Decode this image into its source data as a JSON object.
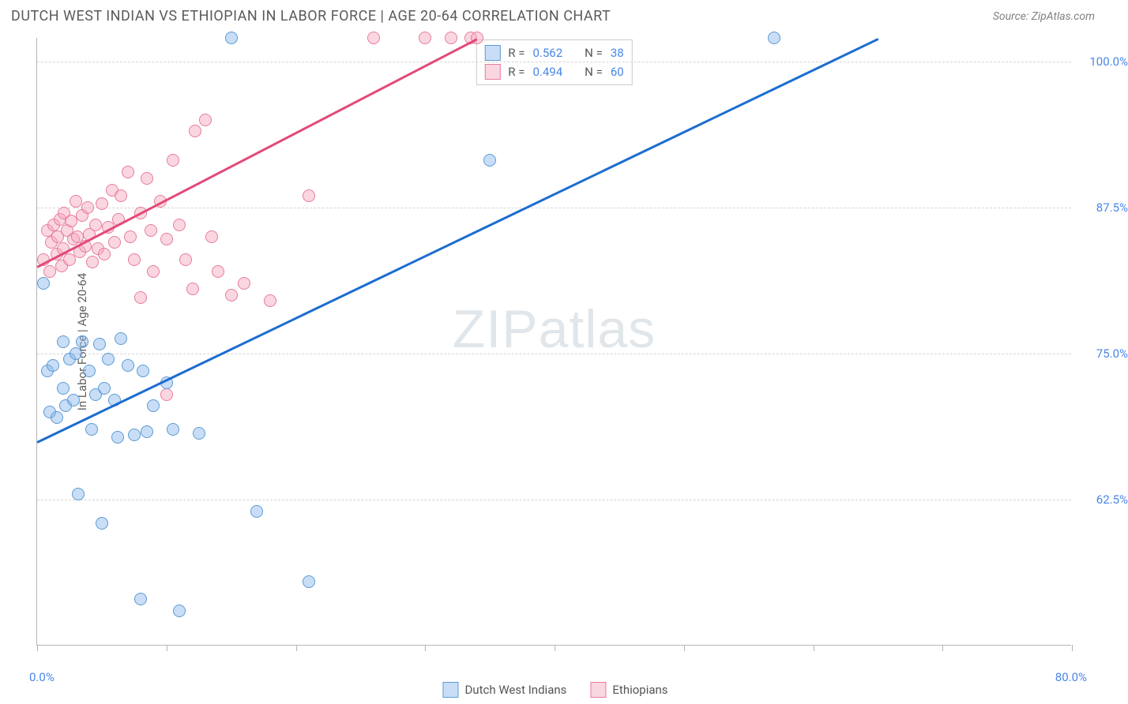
{
  "header": {
    "title": "DUTCH WEST INDIAN VS ETHIOPIAN IN LABOR FORCE | AGE 20-64 CORRELATION CHART",
    "source": "Source: ZipAtlas.com"
  },
  "chart": {
    "type": "scatter",
    "y_axis_title": "In Labor Force | Age 20-64",
    "watermark": "ZIPatlas",
    "xlim": [
      0,
      80
    ],
    "ylim": [
      50,
      102
    ],
    "x_labels": {
      "min": "0.0%",
      "max": "80.0%"
    },
    "y_ticks": [
      {
        "value": 62.5,
        "label": "62.5%"
      },
      {
        "value": 75.0,
        "label": "75.0%"
      },
      {
        "value": 87.5,
        "label": "87.5%"
      },
      {
        "value": 100.0,
        "label": "100.0%"
      }
    ],
    "x_tick_positions": [
      0,
      10,
      20,
      30,
      40,
      50,
      60,
      70,
      80
    ],
    "background_color": "#ffffff",
    "grid_color": "#d5d5d5",
    "series": [
      {
        "name": "Dutch West Indians",
        "marker_fill": "rgba(135,182,235,0.45)",
        "marker_stroke": "#5b9bd5",
        "marker_size": 16,
        "trend": {
          "x1": 0,
          "y1": 67.5,
          "x2": 65,
          "y2": 102,
          "color": "#1c6dd0",
          "width": 2.5
        },
        "R": "0.562",
        "N": "38",
        "points": [
          [
            0.5,
            81
          ],
          [
            0.8,
            73.5
          ],
          [
            1,
            70
          ],
          [
            1.2,
            74
          ],
          [
            1.5,
            69.5
          ],
          [
            2,
            76
          ],
          [
            2,
            72
          ],
          [
            2.2,
            70.5
          ],
          [
            2.5,
            74.5
          ],
          [
            2.8,
            71
          ],
          [
            3,
            75
          ],
          [
            3.2,
            63
          ],
          [
            3.5,
            76
          ],
          [
            4,
            73.5
          ],
          [
            4.2,
            68.5
          ],
          [
            4.5,
            71.5
          ],
          [
            4.8,
            75.8
          ],
          [
            5,
            60.5
          ],
          [
            5.2,
            72
          ],
          [
            5.5,
            74.5
          ],
          [
            6,
            71
          ],
          [
            6.2,
            67.8
          ],
          [
            6.5,
            76.3
          ],
          [
            7,
            74
          ],
          [
            7.5,
            68
          ],
          [
            8,
            54
          ],
          [
            8.2,
            73.5
          ],
          [
            8.5,
            68.3
          ],
          [
            9,
            70.5
          ],
          [
            10,
            72.5
          ],
          [
            10.5,
            68.5
          ],
          [
            11,
            53
          ],
          [
            12.5,
            68.2
          ],
          [
            15,
            102
          ],
          [
            17,
            61.5
          ],
          [
            21,
            55.5
          ],
          [
            35,
            91.5
          ],
          [
            57,
            102
          ]
        ]
      },
      {
        "name": "Ethiopians",
        "marker_fill": "rgba(244,166,187,0.45)",
        "marker_stroke": "#e87b9c",
        "marker_size": 16,
        "trend": {
          "x1": 0,
          "y1": 82.5,
          "x2": 34,
          "y2": 102,
          "color": "#e24a78",
          "width": 2.5
        },
        "R": "0.494",
        "N": "60",
        "points": [
          [
            0.5,
            83
          ],
          [
            0.8,
            85.5
          ],
          [
            1,
            82
          ],
          [
            1.1,
            84.5
          ],
          [
            1.3,
            86
          ],
          [
            1.5,
            83.5
          ],
          [
            1.6,
            85
          ],
          [
            1.8,
            86.5
          ],
          [
            1.9,
            82.5
          ],
          [
            2,
            84
          ],
          [
            2.1,
            87
          ],
          [
            2.3,
            85.5
          ],
          [
            2.5,
            83
          ],
          [
            2.6,
            86.3
          ],
          [
            2.8,
            84.8
          ],
          [
            3,
            88
          ],
          [
            3.1,
            85
          ],
          [
            3.3,
            83.7
          ],
          [
            3.5,
            86.8
          ],
          [
            3.7,
            84.2
          ],
          [
            3.9,
            87.5
          ],
          [
            4,
            85.2
          ],
          [
            4.3,
            82.8
          ],
          [
            4.5,
            86
          ],
          [
            4.7,
            84
          ],
          [
            5,
            87.8
          ],
          [
            5.2,
            83.5
          ],
          [
            5.5,
            85.8
          ],
          [
            5.8,
            89
          ],
          [
            6,
            84.5
          ],
          [
            6.3,
            86.5
          ],
          [
            6.5,
            88.5
          ],
          [
            7,
            90.5
          ],
          [
            7.2,
            85
          ],
          [
            7.5,
            83
          ],
          [
            8,
            87
          ],
          [
            8,
            79.8
          ],
          [
            8.5,
            90
          ],
          [
            8.8,
            85.5
          ],
          [
            9,
            82
          ],
          [
            9.5,
            88
          ],
          [
            10,
            84.8
          ],
          [
            10,
            71.5
          ],
          [
            10.5,
            91.5
          ],
          [
            11,
            86
          ],
          [
            11.5,
            83
          ],
          [
            12,
            80.5
          ],
          [
            12.2,
            94
          ],
          [
            13,
            95
          ],
          [
            13.5,
            85
          ],
          [
            14,
            82
          ],
          [
            15,
            80
          ],
          [
            16,
            81
          ],
          [
            18,
            79.5
          ],
          [
            21,
            88.5
          ],
          [
            26,
            102
          ],
          [
            30,
            102
          ],
          [
            32,
            102
          ],
          [
            33.5,
            102
          ],
          [
            34,
            102
          ]
        ]
      }
    ],
    "legend": {
      "series1_label": "Dutch West Indians",
      "series2_label": "Ethiopians"
    },
    "stats_labels": {
      "R": "R =",
      "N": "N ="
    }
  }
}
